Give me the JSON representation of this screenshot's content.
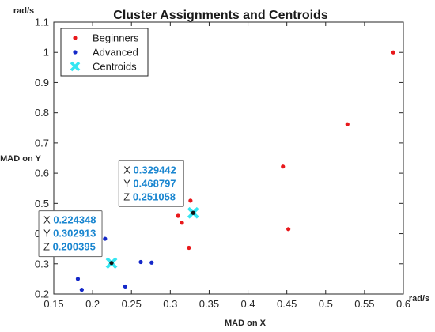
{
  "chart_data": {
    "type": "scatter",
    "title": "Cluster Assignments and Centroids",
    "xlabel": "MAD on X",
    "ylabel": "MAD on Y",
    "x_unit": "rad/s",
    "y_unit": "rad/s",
    "xlim": [
      0.15,
      0.6
    ],
    "ylim": [
      0.2,
      1.1
    ],
    "xticks": [
      "0.15",
      "0.2",
      "0.25",
      "0.3",
      "0.35",
      "0.4",
      "0.45",
      "0.5",
      "0.55",
      "0.6"
    ],
    "yticks": [
      "0.2",
      "0.3",
      "0.4",
      "0.5",
      "0.6",
      "0.7",
      "0.8",
      "0.9",
      "1",
      "1.1"
    ],
    "grid": false,
    "legend_position": "top-left",
    "series": [
      {
        "name": "Beginners",
        "color": "#e8191c",
        "marker": "dot",
        "points": [
          {
            "x": 0.587,
            "y": 1.0
          },
          {
            "x": 0.528,
            "y": 0.762
          },
          {
            "x": 0.445,
            "y": 0.622
          },
          {
            "x": 0.452,
            "y": 0.415
          },
          {
            "x": 0.326,
            "y": 0.509
          },
          {
            "x": 0.31,
            "y": 0.459
          },
          {
            "x": 0.315,
            "y": 0.436
          },
          {
            "x": 0.324,
            "y": 0.353
          }
        ]
      },
      {
        "name": "Advanced",
        "color": "#1428c8",
        "marker": "dot",
        "points": [
          {
            "x": 0.209,
            "y": 0.409
          },
          {
            "x": 0.216,
            "y": 0.383
          },
          {
            "x": 0.181,
            "y": 0.25
          },
          {
            "x": 0.186,
            "y": 0.214
          },
          {
            "x": 0.242,
            "y": 0.225
          },
          {
            "x": 0.262,
            "y": 0.306
          },
          {
            "x": 0.276,
            "y": 0.304
          }
        ]
      },
      {
        "name": "Centroids",
        "color": "#35e6f2",
        "marker": "x",
        "points": [
          {
            "x": 0.224348,
            "y": 0.302913,
            "z": 0.200395
          },
          {
            "x": 0.329442,
            "y": 0.468797,
            "z": 0.251058
          }
        ]
      }
    ],
    "datatips": [
      {
        "lines": [
          {
            "k": "X",
            "v": "0.224348"
          },
          {
            "k": "Y",
            "v": "0.302913"
          },
          {
            "k": "Z",
            "v": "0.200395"
          }
        ]
      },
      {
        "lines": [
          {
            "k": "X",
            "v": "0.329442"
          },
          {
            "k": "Y",
            "v": "0.468797"
          },
          {
            "k": "Z",
            "v": "0.251058"
          }
        ]
      }
    ],
    "colors": {
      "axis": "#262626",
      "datatip_value": "#1a86d0",
      "datatip_border": "#666666"
    }
  }
}
